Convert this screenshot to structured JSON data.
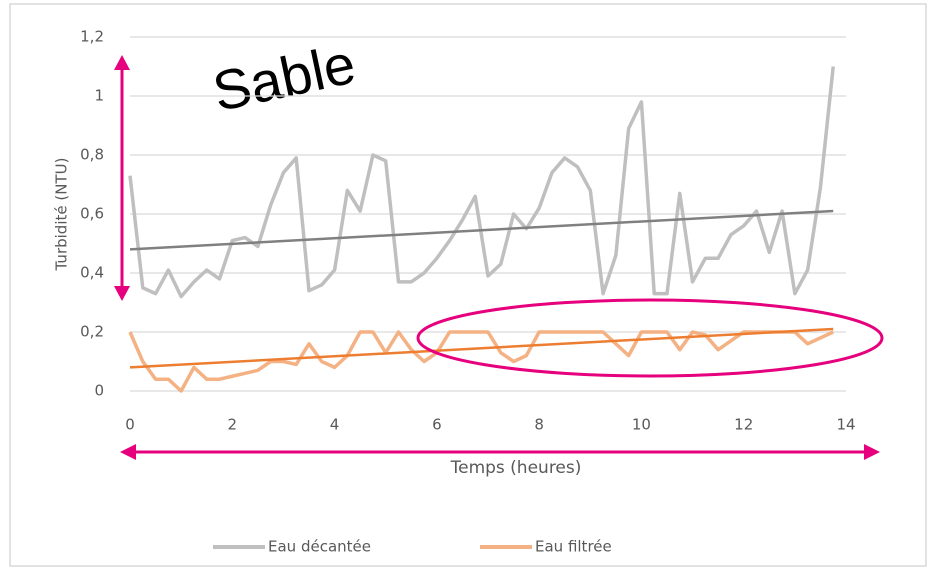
{
  "chart_data": {
    "type": "line",
    "annotation": "Sable",
    "ylabel": "Turbidité (NTU)",
    "xlabel": "Temps (heures)",
    "xlim": [
      0,
      14
    ],
    "xticks": [
      0,
      2,
      4,
      6,
      8,
      10,
      12,
      14
    ],
    "ylim": [
      0,
      1.2
    ],
    "yticks": [
      0,
      {
        "value": 0.2,
        "label": "0,2"
      },
      {
        "value": 0.4,
        "label": "0,4"
      },
      {
        "value": 0.6,
        "label": "0,6"
      },
      {
        "value": 0.8,
        "label": "0,8"
      },
      {
        "value": 1,
        "label": "1"
      },
      {
        "value": 1.2,
        "label": "1,2"
      }
    ],
    "grid": true,
    "legend": "bottom",
    "x": [
      0,
      0.25,
      0.5,
      0.75,
      1,
      1.25,
      1.5,
      1.75,
      2,
      2.25,
      2.5,
      2.75,
      3,
      3.25,
      3.5,
      3.75,
      4,
      4.25,
      4.5,
      4.75,
      5,
      5.25,
      5.5,
      5.75,
      6,
      6.25,
      6.5,
      6.75,
      7,
      7.25,
      7.5,
      7.75,
      8,
      8.25,
      8.5,
      8.75,
      9,
      9.25,
      9.5,
      9.75,
      10,
      10.25,
      10.5,
      10.75,
      11,
      11.25,
      11.5,
      11.75,
      12,
      12.25,
      12.5,
      12.75,
      13,
      13.25,
      13.5,
      13.75
    ],
    "series": [
      {
        "name": "Eau décantée",
        "color": "#bfbfbf",
        "values": [
          0.73,
          0.35,
          0.33,
          0.41,
          0.32,
          0.37,
          0.41,
          0.38,
          0.51,
          0.52,
          0.49,
          0.63,
          0.74,
          0.79,
          0.34,
          0.36,
          0.41,
          0.68,
          0.61,
          0.8,
          0.78,
          0.37,
          0.37,
          0.4,
          0.45,
          0.51,
          0.58,
          0.66,
          0.39,
          0.43,
          0.6,
          0.55,
          0.62,
          0.74,
          0.79,
          0.76,
          0.68,
          0.33,
          0.46,
          0.89,
          0.98,
          0.33,
          0.33,
          0.67,
          0.37,
          0.45,
          0.45,
          0.53,
          0.56,
          0.61,
          0.47,
          0.61,
          0.33,
          0.41,
          0.69,
          1.1
        ]
      },
      {
        "name": "Eau filtrée",
        "color": "#f4b183",
        "values": [
          0.2,
          0.1,
          0.04,
          0.04,
          0.0,
          0.08,
          0.04,
          0.04,
          0.05,
          0.06,
          0.07,
          0.1,
          0.1,
          0.09,
          0.16,
          0.1,
          0.08,
          0.12,
          0.2,
          0.2,
          0.13,
          0.2,
          0.14,
          0.1,
          0.13,
          0.2,
          0.2,
          0.2,
          0.2,
          0.13,
          0.1,
          0.12,
          0.2,
          0.2,
          0.2,
          0.2,
          0.2,
          0.2,
          0.16,
          0.12,
          0.2,
          0.2,
          0.2,
          0.14,
          0.2,
          0.19,
          0.14,
          0.17,
          0.2,
          0.2,
          0.2,
          0.2,
          0.2,
          0.16,
          0.18,
          0.2
        ]
      }
    ],
    "trendlines": [
      {
        "color": "#808080",
        "x": [
          0,
          13.75
        ],
        "values": [
          0.48,
          0.61
        ]
      },
      {
        "color": "#ed7d31",
        "x": [
          0,
          13.75
        ],
        "values": [
          0.08,
          0.21
        ]
      }
    ]
  }
}
